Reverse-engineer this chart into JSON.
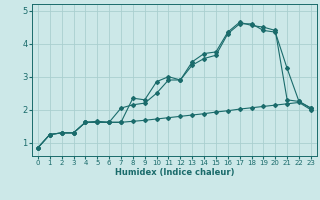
{
  "title": "",
  "xlabel": "Humidex (Indice chaleur)",
  "bg_color": "#cce8e8",
  "grid_color": "#aacfcf",
  "line_color": "#1a6b6b",
  "xlim": [
    -0.5,
    23.5
  ],
  "ylim": [
    0.6,
    5.2
  ],
  "xticks": [
    0,
    1,
    2,
    3,
    4,
    5,
    6,
    7,
    8,
    9,
    10,
    11,
    12,
    13,
    14,
    15,
    16,
    17,
    18,
    19,
    20,
    21,
    22,
    23
  ],
  "yticks": [
    1,
    2,
    3,
    4,
    5
  ],
  "line1_x": [
    0,
    1,
    2,
    3,
    4,
    5,
    6,
    7,
    8,
    9,
    10,
    11,
    12,
    13,
    14,
    15,
    16,
    17,
    18,
    19,
    20,
    21,
    22,
    23
  ],
  "line1_y": [
    0.85,
    1.25,
    1.3,
    1.3,
    1.62,
    1.62,
    1.62,
    1.62,
    1.65,
    1.68,
    1.72,
    1.76,
    1.8,
    1.84,
    1.88,
    1.93,
    1.97,
    2.02,
    2.06,
    2.1,
    2.14,
    2.18,
    2.22,
    2.0
  ],
  "line2_x": [
    0,
    1,
    2,
    3,
    4,
    5,
    6,
    7,
    8,
    9,
    10,
    11,
    12,
    13,
    14,
    15,
    16,
    17,
    18,
    19,
    20,
    21,
    22,
    23
  ],
  "line2_y": [
    0.85,
    1.25,
    1.3,
    1.3,
    1.62,
    1.65,
    1.62,
    2.05,
    2.15,
    2.2,
    2.5,
    2.9,
    2.9,
    3.35,
    3.55,
    3.65,
    4.3,
    4.6,
    4.6,
    4.4,
    4.35,
    3.25,
    2.25,
    2.05
  ],
  "line3_x": [
    0,
    1,
    2,
    3,
    4,
    5,
    6,
    7,
    8,
    9,
    10,
    11,
    12,
    13,
    14,
    15,
    16,
    17,
    18,
    19,
    20,
    21,
    22,
    23
  ],
  "line3_y": [
    0.85,
    1.25,
    1.3,
    1.3,
    1.62,
    1.62,
    1.62,
    1.62,
    2.35,
    2.3,
    2.85,
    3.0,
    2.9,
    3.45,
    3.7,
    3.75,
    4.35,
    4.65,
    4.55,
    4.5,
    4.4,
    2.3,
    2.25,
    2.05
  ]
}
